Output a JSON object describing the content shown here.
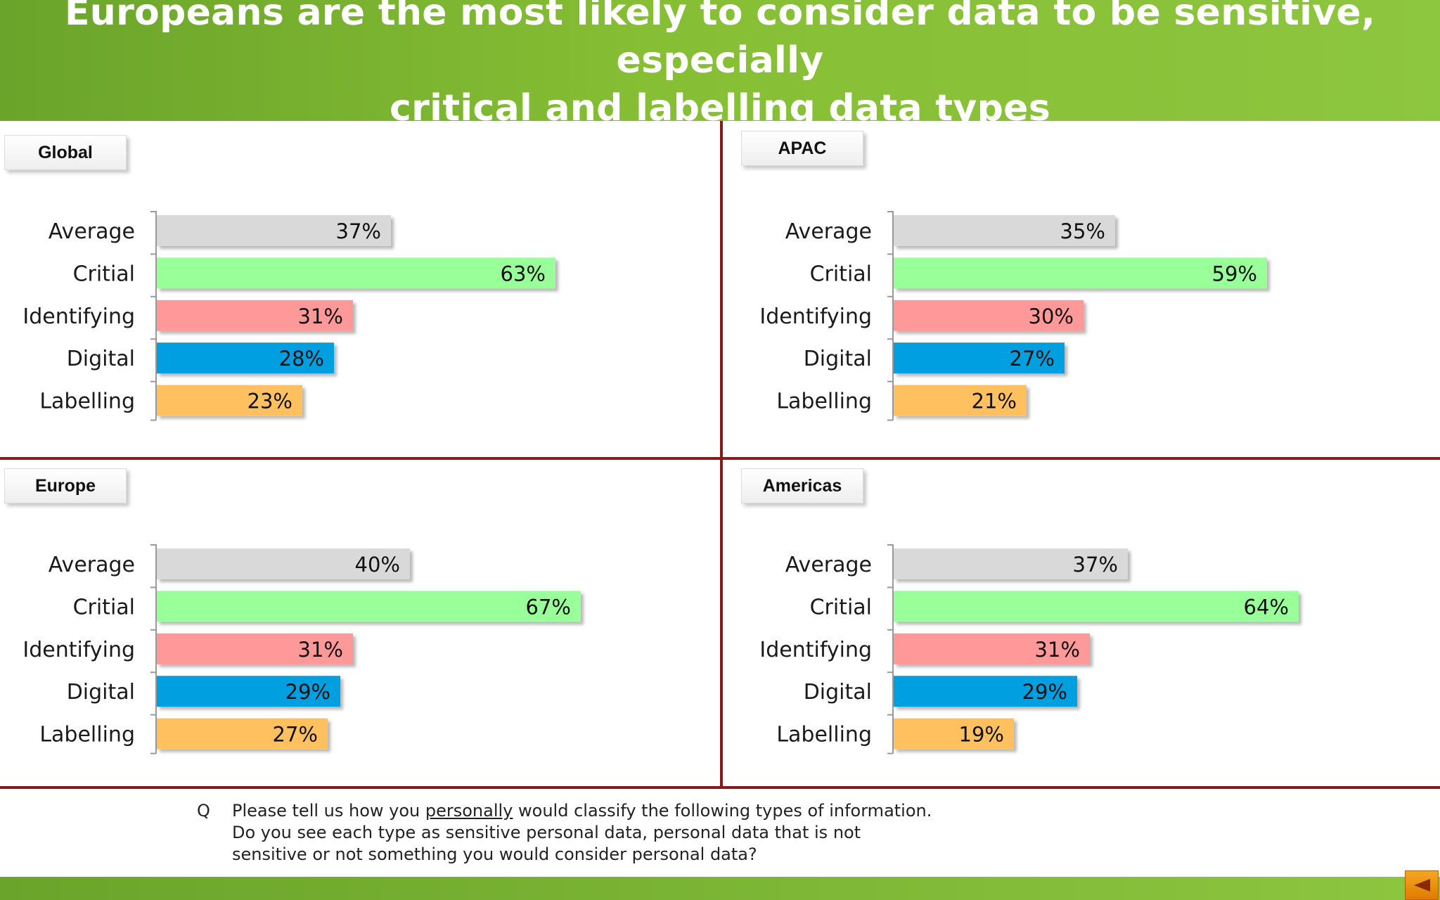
{
  "header": {
    "title_line1": "Europeans are the most likely to consider data to be sensitive, especially",
    "title_line2": "critical and labelling data types"
  },
  "colors": {
    "header_green": "#7ab630",
    "divider": "#8a1a1a",
    "average": "#d9d9d9",
    "critical": "#99ff99",
    "identifying": "#ff9999",
    "digital": "#00a0e0",
    "labelling": "#ffc060"
  },
  "chart_data": [
    {
      "type": "bar",
      "title": "Global",
      "categories": [
        "Average",
        "Critial",
        "Identifying",
        "Digital",
        "Labelling"
      ],
      "values": [
        37,
        63,
        31,
        28,
        23
      ],
      "value_labels": [
        "37%",
        "63%",
        "31%",
        "28%",
        "23%"
      ],
      "colors": [
        "#d9d9d9",
        "#99ff99",
        "#ff9999",
        "#00a0e0",
        "#ffc060"
      ],
      "xlim": [
        0,
        100
      ]
    },
    {
      "type": "bar",
      "title": "APAC",
      "categories": [
        "Average",
        "Critial",
        "Identifying",
        "Digital",
        "Labelling"
      ],
      "values": [
        35,
        59,
        30,
        27,
        21
      ],
      "value_labels": [
        "35%",
        "59%",
        "30%",
        "27%",
        "21%"
      ],
      "colors": [
        "#d9d9d9",
        "#99ff99",
        "#ff9999",
        "#00a0e0",
        "#ffc060"
      ],
      "xlim": [
        0,
        100
      ]
    },
    {
      "type": "bar",
      "title": "Europe",
      "categories": [
        "Average",
        "Critial",
        "Identifying",
        "Digital",
        "Labelling"
      ],
      "values": [
        40,
        67,
        31,
        29,
        27
      ],
      "value_labels": [
        "40%",
        "67%",
        "31%",
        "29%",
        "27%"
      ],
      "colors": [
        "#d9d9d9",
        "#99ff99",
        "#ff9999",
        "#00a0e0",
        "#ffc060"
      ],
      "xlim": [
        0,
        100
      ]
    },
    {
      "type": "bar",
      "title": "Americas",
      "categories": [
        "Average",
        "Critial",
        "Identifying",
        "Digital",
        "Labelling"
      ],
      "values": [
        37,
        64,
        31,
        29,
        19
      ],
      "value_labels": [
        "37%",
        "64%",
        "31%",
        "29%",
        "19%"
      ],
      "colors": [
        "#d9d9d9",
        "#99ff99",
        "#ff9999",
        "#00a0e0",
        "#ffc060"
      ],
      "xlim": [
        0,
        100
      ]
    }
  ],
  "footnote": {
    "q_marker": "Q",
    "text_before": "Please tell us how you ",
    "text_underlined": "personally",
    "text_after": " would classify the following types of information.  Do you see each type as sensitive personal data, personal data that is not sensitive or not something you would consider personal data?"
  },
  "navigation": {
    "back_icon": "triangle-left-icon"
  }
}
